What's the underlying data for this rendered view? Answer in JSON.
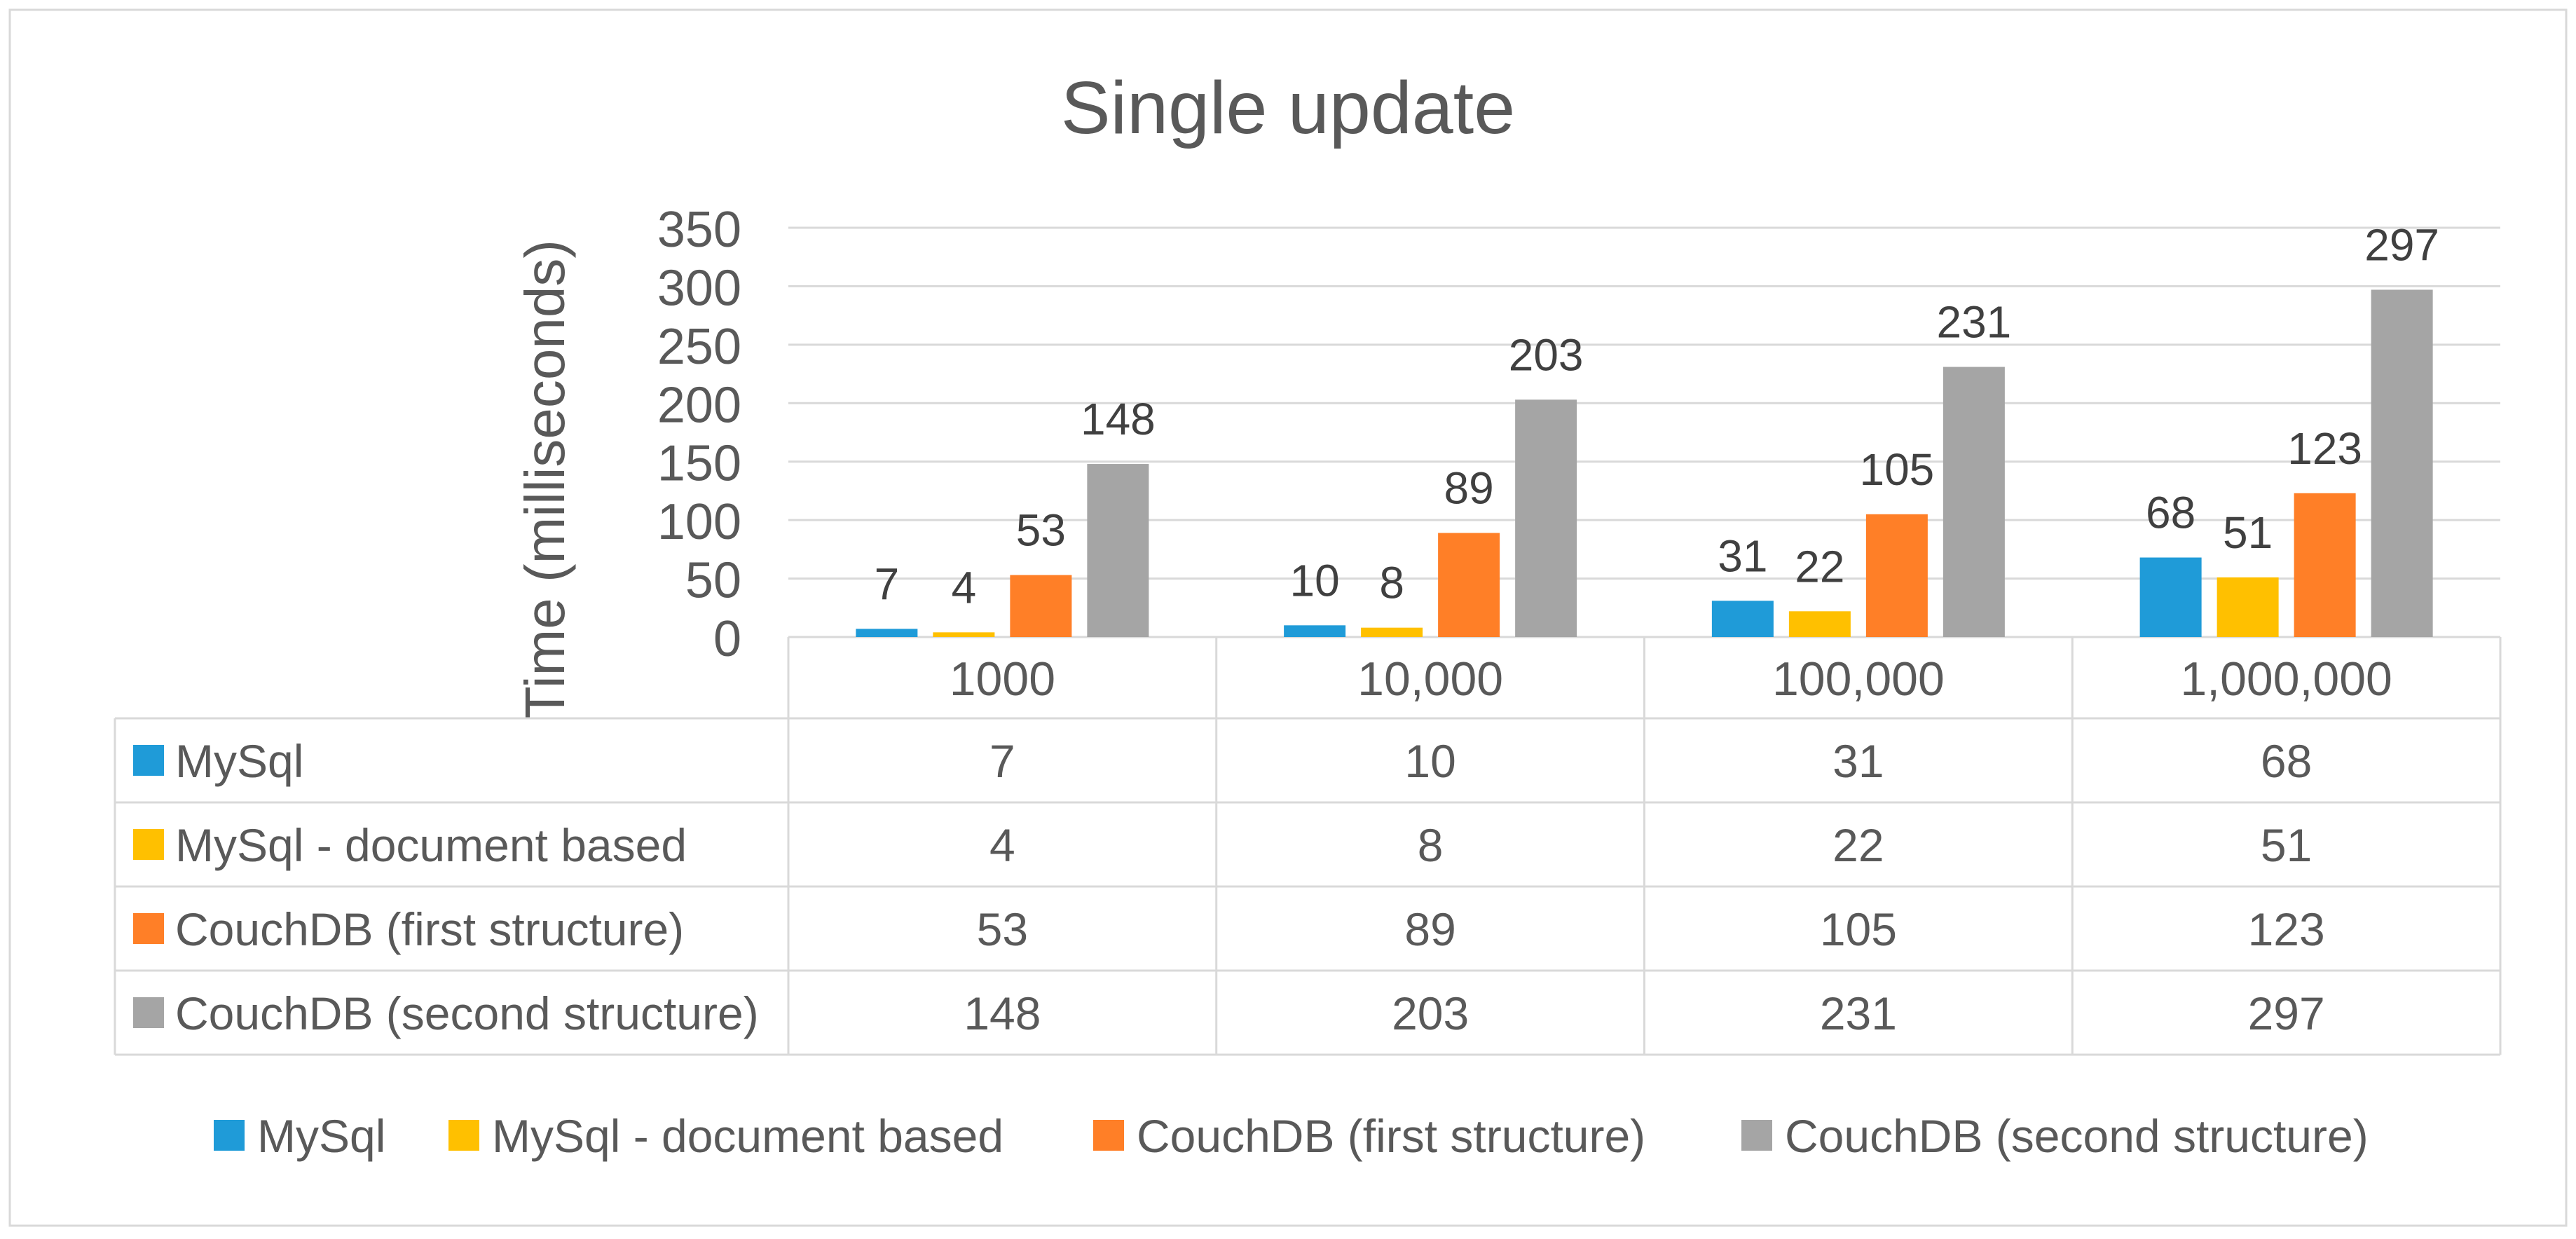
{
  "chart_data": {
    "type": "bar",
    "title": "Single update",
    "ylabel": "Time (milliseconds)",
    "xlabel": "",
    "ylim": [
      0,
      350
    ],
    "yticks": [
      0,
      50,
      100,
      150,
      200,
      250,
      300,
      350
    ],
    "categories": [
      "1000",
      "10,000",
      "100,000",
      "1,000,000"
    ],
    "series": [
      {
        "name": "MySql",
        "color": "#1F9BD8",
        "values": [
          7,
          10,
          31,
          68
        ]
      },
      {
        "name": "MySql - document based",
        "color": "#FFC000",
        "values": [
          4,
          8,
          22,
          51
        ]
      },
      {
        "name": "CouchDB (first structure)",
        "color": "#FF7F27",
        "values": [
          53,
          89,
          105,
          123
        ]
      },
      {
        "name": "CouchDB (second structure)",
        "color": "#A5A5A5",
        "values": [
          148,
          203,
          231,
          297
        ]
      }
    ],
    "grid": true,
    "data_labels": true,
    "data_table": true,
    "legend_position": "bottom"
  }
}
